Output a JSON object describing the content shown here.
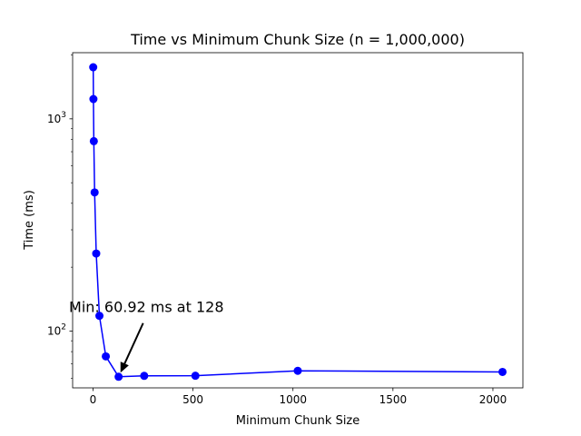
{
  "chart_data": {
    "type": "line",
    "title": "Time vs Minimum Chunk Size (n = 1,000,000)",
    "xlabel": "Minimum Chunk Size",
    "ylabel": "Time (ms)",
    "yscale": "log",
    "xlim": [
      -102,
      2150
    ],
    "ylim": [
      54,
      2050
    ],
    "grid": false,
    "x_ticks": [
      0,
      500,
      1000,
      1500,
      2000
    ],
    "x_tick_labels": [
      "0",
      "500",
      "1000",
      "1500",
      "2000"
    ],
    "y_major_ticks": [
      100,
      1000
    ],
    "y_tick_labels": [
      {
        "base": "10",
        "exp": "2"
      },
      {
        "base": "10",
        "exp": "3"
      }
    ],
    "y_minor_ticks": [
      60,
      70,
      80,
      90,
      200,
      300,
      400,
      500,
      600,
      700,
      800,
      900,
      2000
    ],
    "series": [
      {
        "color": "#0000ff",
        "marker": "circle",
        "x": [
          1,
          2,
          4,
          8,
          16,
          32,
          64,
          128,
          256,
          512,
          1024,
          2048
        ],
        "y": [
          1750,
          1240,
          785,
          450,
          232,
          118,
          76,
          60.92,
          61.5,
          61.6,
          65,
          64.2
        ]
      }
    ],
    "annotation": {
      "text": "Min: 60.92 ms at 128",
      "point": [
        128,
        60.92
      ],
      "text_anchor": [
        -120,
        123
      ]
    }
  }
}
